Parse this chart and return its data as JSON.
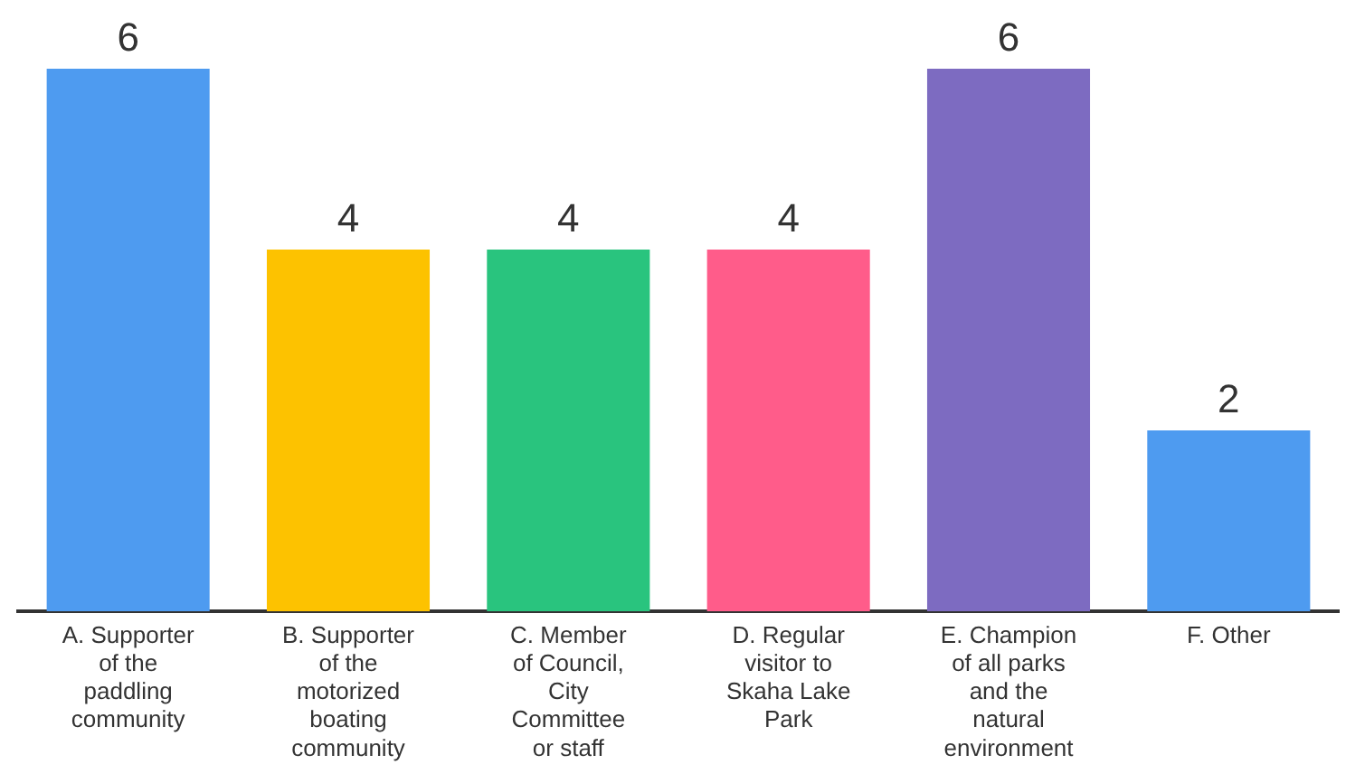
{
  "chart_data": {
    "type": "bar",
    "categories": [
      "A. Supporter of the paddling community",
      "B. Supporter of the motorized boating community",
      "C. Member of Council, City Committee or staff",
      "D. Regular visitor to Skaha Lake Park",
      "E. Champion of all parks and the natural environment",
      "F. Other"
    ],
    "values": [
      6,
      4,
      4,
      4,
      6,
      2
    ],
    "colors": [
      "#4e9bf0",
      "#fdc200",
      "#29c47e",
      "#ff5c8a",
      "#7d6bc1",
      "#4e9bf0"
    ],
    "data_labels": true,
    "grid": false,
    "legend": false
  }
}
